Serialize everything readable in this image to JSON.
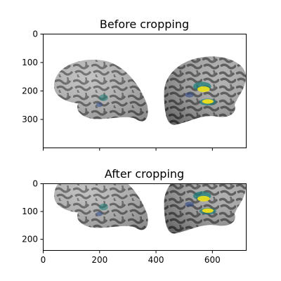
{
  "chart_data": [
    {
      "type": "image",
      "title": "Before cropping",
      "xlim": [
        0,
        720
      ],
      "ylim": [
        400,
        0
      ],
      "xticks": [
        0,
        200,
        400,
        600
      ],
      "xtick_labels_visible": false,
      "yticks": [
        0,
        100,
        200,
        300
      ],
      "ytick_labels": [
        "0",
        "100",
        "200",
        "300"
      ],
      "content": "brain-surface-render-lateral-and-medial"
    },
    {
      "type": "image",
      "title": "After cropping",
      "xlim": [
        0,
        720
      ],
      "ylim": [
        240,
        0
      ],
      "xticks": [
        0,
        200,
        400,
        600
      ],
      "xtick_labels": [
        "0",
        "200",
        "400",
        "600"
      ],
      "yticks": [
        0,
        100,
        200
      ],
      "ytick_labels": [
        "0",
        "100",
        "200"
      ],
      "content": "brain-surface-render-lateral-and-medial"
    }
  ],
  "colors": {
    "sulcus_dark": "#5c5c5c",
    "gyrus_light": "#b8b8b8",
    "overlay_yellow": "#f2e21b",
    "overlay_teal": "#1f7f7a",
    "overlay_blue": "#2e4a8a"
  }
}
